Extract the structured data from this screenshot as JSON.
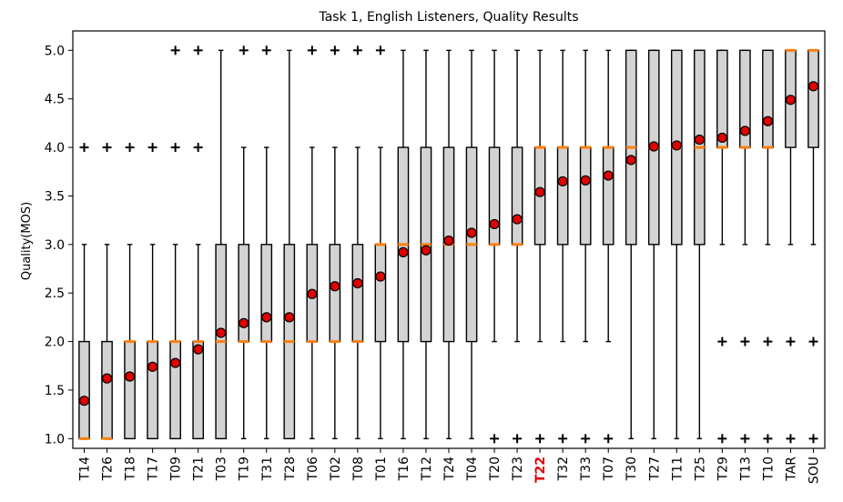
{
  "chart_data": {
    "type": "boxplot",
    "title": "Task 1, English Listeners, Quality Results",
    "xlabel": "",
    "ylabel": "Quality(MOS)",
    "ylim": [
      0.9,
      5.2
    ],
    "yticks": [
      1.0,
      1.5,
      2.0,
      2.5,
      3.0,
      3.5,
      4.0,
      4.5,
      5.0
    ],
    "ytick_labels": [
      "1.0",
      "1.5",
      "2.0",
      "2.5",
      "3.0",
      "3.5",
      "4.0",
      "4.5",
      "5.0"
    ],
    "grid": false,
    "highlighted_category": "T22",
    "colors": {
      "box_fill": "#d3d3d3",
      "box_edge": "#000000",
      "median": "#ff7f0e",
      "mean_marker": "#e00000",
      "highlight_label": "#e00000"
    },
    "categories": [
      "T14",
      "T26",
      "T18",
      "T17",
      "T09",
      "T21",
      "T03",
      "T19",
      "T31",
      "T28",
      "T06",
      "T02",
      "T08",
      "T01",
      "T16",
      "T12",
      "T24",
      "T04",
      "T20",
      "T23",
      "T22",
      "T32",
      "T33",
      "T07",
      "T30",
      "T27",
      "T11",
      "T25",
      "T29",
      "T13",
      "T10",
      "TAR",
      "SOU"
    ],
    "boxes": [
      {
        "q1": 1,
        "median": 1,
        "q3": 2,
        "whislo": 1,
        "whishi": 3,
        "mean": 1.39,
        "fliers": [
          4
        ]
      },
      {
        "q1": 1,
        "median": 1,
        "q3": 2,
        "whislo": 1,
        "whishi": 3,
        "mean": 1.62,
        "fliers": [
          4
        ]
      },
      {
        "q1": 1,
        "median": 2,
        "q3": 2,
        "whislo": 1,
        "whishi": 3,
        "mean": 1.64,
        "fliers": [
          4
        ]
      },
      {
        "q1": 1,
        "median": 2,
        "q3": 2,
        "whislo": 1,
        "whishi": 3,
        "mean": 1.74,
        "fliers": [
          4
        ]
      },
      {
        "q1": 1,
        "median": 2,
        "q3": 2,
        "whislo": 1,
        "whishi": 3,
        "mean": 1.78,
        "fliers": [
          4,
          5
        ]
      },
      {
        "q1": 1,
        "median": 2,
        "q3": 2,
        "whislo": 1,
        "whishi": 3,
        "mean": 1.92,
        "fliers": [
          4,
          5
        ]
      },
      {
        "q1": 1,
        "median": 2,
        "q3": 3,
        "whislo": 1,
        "whishi": 5,
        "mean": 2.09,
        "fliers": []
      },
      {
        "q1": 2,
        "median": 2,
        "q3": 3,
        "whislo": 1,
        "whishi": 4,
        "mean": 2.19,
        "fliers": [
          5
        ]
      },
      {
        "q1": 2,
        "median": 2,
        "q3": 3,
        "whislo": 1,
        "whishi": 4,
        "mean": 2.25,
        "fliers": [
          5
        ]
      },
      {
        "q1": 1,
        "median": 2,
        "q3": 3,
        "whislo": 1,
        "whishi": 5,
        "mean": 2.25,
        "fliers": []
      },
      {
        "q1": 2,
        "median": 2,
        "q3": 3,
        "whislo": 1,
        "whishi": 4,
        "mean": 2.49,
        "fliers": [
          5
        ]
      },
      {
        "q1": 2,
        "median": 2,
        "q3": 3,
        "whislo": 1,
        "whishi": 4,
        "mean": 2.57,
        "fliers": [
          5
        ]
      },
      {
        "q1": 2,
        "median": 2,
        "q3": 3,
        "whislo": 1,
        "whishi": 4,
        "mean": 2.6,
        "fliers": [
          5
        ]
      },
      {
        "q1": 2,
        "median": 3,
        "q3": 3,
        "whislo": 1,
        "whishi": 4,
        "mean": 2.67,
        "fliers": [
          5
        ]
      },
      {
        "q1": 2,
        "median": 3,
        "q3": 4,
        "whislo": 1,
        "whishi": 5,
        "mean": 2.92,
        "fliers": []
      },
      {
        "q1": 2,
        "median": 3,
        "q3": 4,
        "whislo": 1,
        "whishi": 5,
        "mean": 2.94,
        "fliers": []
      },
      {
        "q1": 2,
        "median": 3,
        "q3": 4,
        "whislo": 1,
        "whishi": 5,
        "mean": 3.04,
        "fliers": []
      },
      {
        "q1": 2,
        "median": 3,
        "q3": 4,
        "whislo": 1,
        "whishi": 5,
        "mean": 3.12,
        "fliers": []
      },
      {
        "q1": 3,
        "median": 3,
        "q3": 4,
        "whislo": 2,
        "whishi": 5,
        "mean": 3.21,
        "fliers": [
          1
        ]
      },
      {
        "q1": 3,
        "median": 3,
        "q3": 4,
        "whislo": 2,
        "whishi": 5,
        "mean": 3.26,
        "fliers": [
          1
        ]
      },
      {
        "q1": 3,
        "median": 4,
        "q3": 4,
        "whislo": 2,
        "whishi": 5,
        "mean": 3.54,
        "fliers": [
          1
        ]
      },
      {
        "q1": 3,
        "median": 4,
        "q3": 4,
        "whislo": 2,
        "whishi": 5,
        "mean": 3.65,
        "fliers": [
          1
        ]
      },
      {
        "q1": 3,
        "median": 4,
        "q3": 4,
        "whislo": 2,
        "whishi": 5,
        "mean": 3.66,
        "fliers": [
          1
        ]
      },
      {
        "q1": 3,
        "median": 4,
        "q3": 4,
        "whislo": 2,
        "whishi": 5,
        "mean": 3.71,
        "fliers": [
          1
        ]
      },
      {
        "q1": 3,
        "median": 4,
        "q3": 5,
        "whislo": 1,
        "whishi": 5,
        "mean": 3.87,
        "fliers": []
      },
      {
        "q1": 3,
        "median": 4,
        "q3": 5,
        "whislo": 1,
        "whishi": 5,
        "mean": 4.01,
        "fliers": []
      },
      {
        "q1": 3,
        "median": 4,
        "q3": 5,
        "whislo": 1,
        "whishi": 5,
        "mean": 4.02,
        "fliers": []
      },
      {
        "q1": 3,
        "median": 4,
        "q3": 5,
        "whislo": 1,
        "whishi": 5,
        "mean": 4.08,
        "fliers": []
      },
      {
        "q1": 4,
        "median": 4,
        "q3": 5,
        "whislo": 3,
        "whishi": 5,
        "mean": 4.1,
        "fliers": [
          1,
          2
        ]
      },
      {
        "q1": 4,
        "median": 4,
        "q3": 5,
        "whislo": 3,
        "whishi": 5,
        "mean": 4.17,
        "fliers": [
          1,
          2
        ]
      },
      {
        "q1": 4,
        "median": 4,
        "q3": 5,
        "whislo": 3,
        "whishi": 5,
        "mean": 4.27,
        "fliers": [
          1,
          2
        ]
      },
      {
        "q1": 4,
        "median": 5,
        "q3": 5,
        "whislo": 3,
        "whishi": 5,
        "mean": 4.49,
        "fliers": [
          1,
          2
        ]
      },
      {
        "q1": 4,
        "median": 5,
        "q3": 5,
        "whislo": 3,
        "whishi": 5,
        "mean": 4.63,
        "fliers": [
          1,
          2
        ]
      }
    ]
  }
}
